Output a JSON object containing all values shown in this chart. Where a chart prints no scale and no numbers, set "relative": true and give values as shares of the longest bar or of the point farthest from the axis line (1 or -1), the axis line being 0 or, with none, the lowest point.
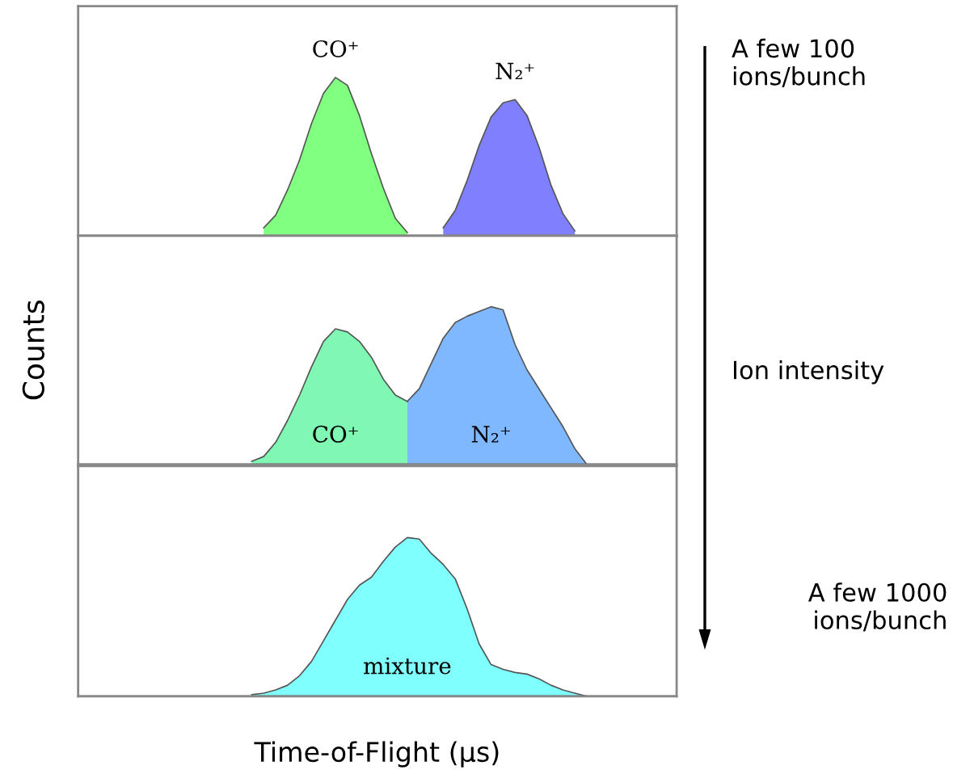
{
  "chart_data": [
    {
      "type": "area",
      "relative": true,
      "categories": [
        null,
        null,
        null,
        null,
        null,
        null,
        null,
        null,
        null,
        null,
        null,
        null,
        null,
        null,
        null,
        null,
        null,
        null,
        null,
        null,
        null,
        null,
        null,
        null,
        null,
        null,
        null,
        null,
        null,
        null,
        null,
        null,
        null,
        null,
        null,
        null,
        null,
        null,
        null,
        null,
        null,
        null,
        null,
        null,
        null,
        null,
        null,
        null,
        null,
        null
      ],
      "series": [
        {
          "name": "CO⁺",
          "color": "#80ff80",
          "values": [
            null,
            null,
            null,
            null,
            null,
            null,
            null,
            null,
            null,
            null,
            null,
            null,
            null,
            null,
            null,
            0.05,
            0.13,
            0.29,
            0.48,
            0.71,
            0.9,
            1,
            0.95,
            0.76,
            0.52,
            0.3,
            0.11,
            0.02,
            null,
            null,
            null,
            null,
            null,
            null,
            null,
            null,
            null,
            null,
            null,
            null,
            null,
            null,
            null,
            null,
            null,
            null,
            null,
            null,
            null,
            null
          ]
        },
        {
          "name": "N₂⁺",
          "color": "#8080ff",
          "values": [
            null,
            null,
            null,
            null,
            null,
            null,
            null,
            null,
            null,
            null,
            null,
            null,
            null,
            null,
            null,
            null,
            null,
            null,
            null,
            null,
            null,
            null,
            null,
            null,
            null,
            null,
            null,
            null,
            null,
            null,
            0.05,
            0.16,
            0.35,
            0.57,
            0.75,
            0.84,
            0.86,
            0.76,
            0.56,
            0.32,
            0.14,
            0.03,
            null,
            null,
            null,
            null,
            null,
            null,
            null,
            null
          ]
        }
      ]
    },
    {
      "type": "area",
      "relative": true,
      "ylabel": "Counts",
      "categories": [
        null,
        null,
        null,
        null,
        null,
        null,
        null,
        null,
        null,
        null,
        null,
        null,
        null,
        null,
        null,
        null,
        null,
        null,
        null,
        null,
        null,
        null,
        null,
        null,
        null,
        null,
        null,
        null,
        null,
        null,
        null,
        null,
        null,
        null,
        null,
        null,
        null,
        null,
        null,
        null,
        null,
        null,
        null,
        null,
        null,
        null,
        null,
        null,
        null,
        null
      ],
      "series": [
        {
          "name": "CO⁺",
          "color": "#80f8b4",
          "values": [
            null,
            null,
            null,
            null,
            null,
            null,
            null,
            null,
            null,
            null,
            null,
            null,
            null,
            null,
            0.02,
            0.05,
            0.14,
            0.28,
            0.44,
            0.62,
            0.78,
            0.86,
            0.84,
            0.78,
            0.68,
            0.54,
            0.44,
            0.4,
            null,
            null,
            null,
            null,
            null,
            null,
            null,
            null,
            null,
            null,
            null,
            null,
            null,
            null,
            null,
            null,
            null,
            null,
            null,
            null,
            null,
            null
          ]
        },
        {
          "name": "N₂⁺",
          "color": "#80b8ff",
          "values": [
            null,
            null,
            null,
            null,
            null,
            null,
            null,
            null,
            null,
            null,
            null,
            null,
            null,
            null,
            null,
            null,
            null,
            null,
            null,
            null,
            null,
            null,
            null,
            null,
            null,
            null,
            null,
            0.4,
            0.48,
            0.64,
            0.8,
            0.9,
            0.94,
            0.97,
            1,
            0.98,
            0.76,
            0.6,
            0.48,
            0.36,
            0.24,
            0.1,
            0,
            null,
            null,
            null,
            null,
            null,
            null,
            null
          ]
        }
      ]
    },
    {
      "type": "area",
      "relative": true,
      "xlabel": "Time-of-Flight (µs)",
      "categories": [
        null,
        null,
        null,
        null,
        null,
        null,
        null,
        null,
        null,
        null,
        null,
        null,
        null,
        null,
        null,
        null,
        null,
        null,
        null,
        null,
        null,
        null,
        null,
        null,
        null,
        null,
        null,
        null,
        null,
        null,
        null,
        null,
        null,
        null,
        null,
        null,
        null,
        null,
        null,
        null,
        null,
        null,
        null,
        null,
        null,
        null,
        null,
        null,
        null,
        null
      ],
      "series": [
        {
          "name": "mixture",
          "color": "#80ffff",
          "values": [
            null,
            null,
            null,
            null,
            null,
            null,
            null,
            null,
            null,
            null,
            null,
            null,
            null,
            null,
            0.01,
            0.02,
            0.04,
            0.07,
            0.13,
            0.22,
            0.35,
            0.48,
            0.61,
            0.7,
            0.75,
            0.85,
            0.94,
            1,
            0.99,
            0.9,
            0.83,
            0.74,
            0.55,
            0.33,
            0.2,
            0.17,
            0.15,
            0.14,
            0.11,
            0.07,
            0.04,
            0.02,
            0,
            null,
            null,
            null,
            null,
            null,
            null,
            null
          ]
        }
      ]
    },
    {
      "type": "other",
      "annotations": [
        "A few 100\nions/bunch",
        "Ion intensity",
        "A few 1000\nions/bunch"
      ]
    }
  ]
}
